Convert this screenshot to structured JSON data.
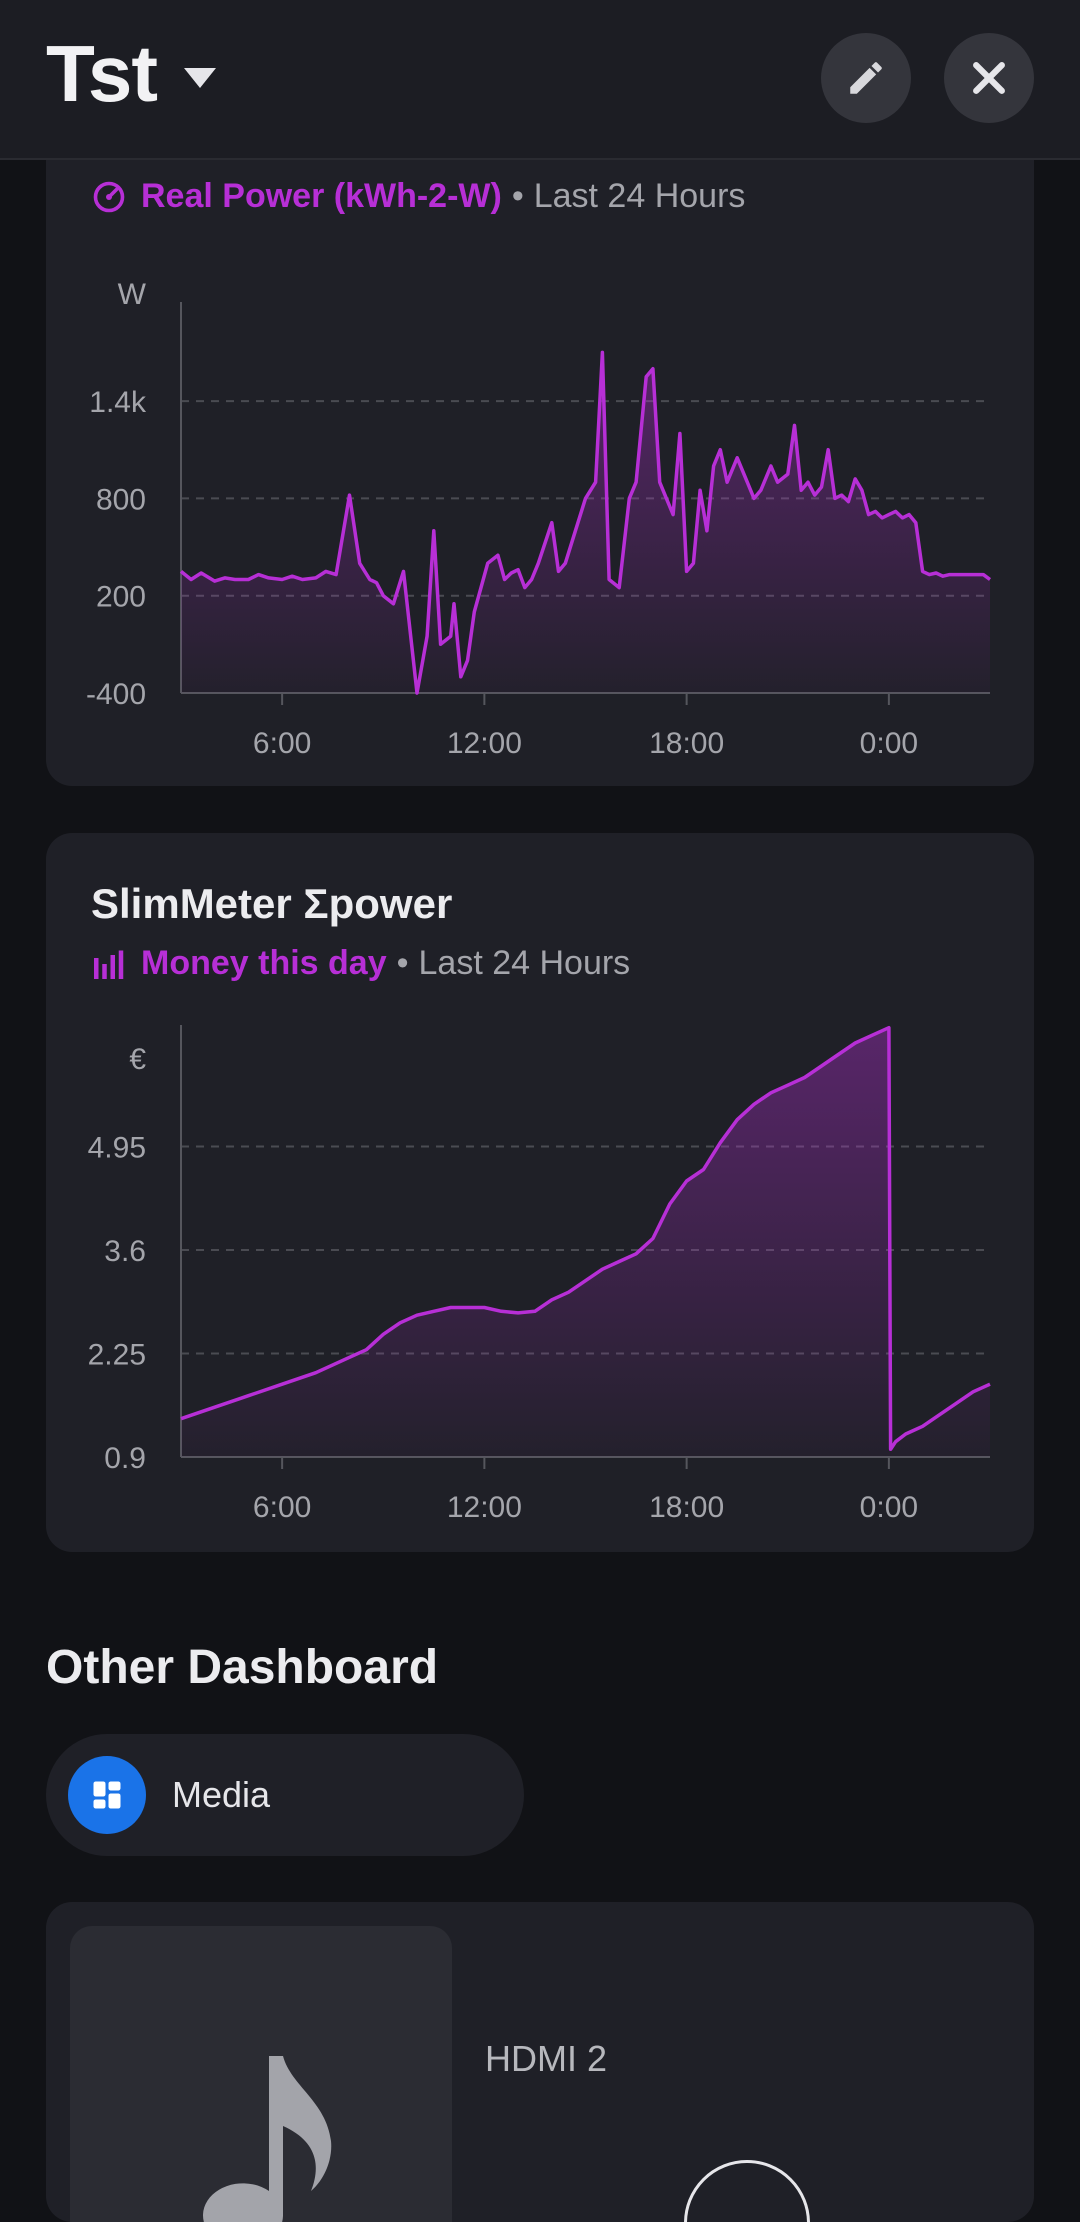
{
  "header": {
    "title": "Tst",
    "icons": [
      "chevron-down-icon",
      "pencil-icon",
      "close-icon"
    ]
  },
  "cards": [
    {
      "title": "",
      "entity": "Real Power (kWh-2-W)",
      "period": "Last 24 Hours",
      "icon": "gauge-icon",
      "accent_color": "#b72fd6"
    },
    {
      "title": "SlimMeter Σpower",
      "entity": "Money this day",
      "period": "Last 24 Hours",
      "icon": "bar-chart-icon",
      "accent_color": "#b72fd6"
    }
  ],
  "chart_data": [
    {
      "type": "line",
      "series": [
        {
          "name": "",
          "x": [
            3,
            3.3,
            3.6,
            4,
            4.3,
            4.6,
            5,
            5.3,
            5.6,
            6,
            6.3,
            6.6,
            7,
            7.3,
            7.6,
            8,
            8.3,
            8.6,
            8.8,
            9,
            9.3,
            9.6,
            10,
            10.3,
            10.5,
            10.7,
            11,
            11.1,
            11.3,
            11.5,
            11.7,
            11.9,
            12.1,
            12.4,
            12.6,
            12.8,
            13,
            13.2,
            13.4,
            13.6,
            14,
            14.2,
            14.4,
            14.7,
            15,
            15.3,
            15.5,
            15.7,
            16,
            16.3,
            16.5,
            16.8,
            17,
            17.2,
            17.4,
            17.6,
            17.8,
            18,
            18.2,
            18.4,
            18.6,
            18.8,
            19,
            19.2,
            19.5,
            19.8,
            20,
            20.2,
            20.5,
            20.7,
            21,
            21.2,
            21.4,
            21.6,
            21.8,
            22,
            22.2,
            22.4,
            22.6,
            22.8,
            23,
            23.2,
            23.4,
            23.6,
            23.8,
            24,
            24.2,
            24.4,
            24.6,
            24.8,
            25,
            25.2,
            25.4,
            25.6,
            25.8,
            26,
            26.2,
            26.5,
            26.8,
            27
          ],
          "y": [
            350,
            300,
            340,
            290,
            310,
            300,
            300,
            330,
            310,
            300,
            320,
            300,
            310,
            350,
            330,
            820,
            400,
            300,
            280,
            200,
            150,
            350,
            -400,
            -50,
            600,
            -100,
            -50,
            150,
            -300,
            -200,
            100,
            250,
            400,
            450,
            300,
            340,
            360,
            250,
            300,
            400,
            650,
            350,
            400,
            600,
            800,
            900,
            1700,
            300,
            250,
            800,
            900,
            1550,
            1600,
            900,
            800,
            700,
            1200,
            350,
            400,
            850,
            600,
            1000,
            1100,
            900,
            1050,
            900,
            800,
            850,
            1000,
            900,
            950,
            1250,
            850,
            900,
            820,
            870,
            1100,
            800,
            820,
            780,
            920,
            850,
            700,
            720,
            680,
            700,
            720,
            680,
            700,
            650,
            350,
            330,
            340,
            320,
            330,
            330,
            330,
            330,
            330,
            300
          ],
          "color": "#b72fd6"
        }
      ],
      "ylabel": "W",
      "yticks": [
        "-400",
        "200",
        "800",
        "1.4k"
      ],
      "xticks": [
        "6:00",
        "12:00",
        "18:00",
        "0:00"
      ],
      "xlim": [
        3,
        27
      ],
      "ylim": [
        -400,
        1900
      ],
      "grid": true
    },
    {
      "type": "area",
      "series": [
        {
          "name": "",
          "x": [
            3,
            4,
            5,
            6,
            7,
            8,
            8.5,
            9,
            9.5,
            10,
            10.5,
            11,
            11.5,
            12,
            12.5,
            13,
            13.5,
            14,
            14.5,
            15,
            15.5,
            16,
            16.5,
            17,
            17.5,
            18,
            18.5,
            19,
            19.5,
            20,
            20.5,
            21,
            21.5,
            22,
            22.5,
            23,
            23.5,
            24,
            24.05,
            24.2,
            24.5,
            25,
            25.5,
            26,
            26.5,
            27
          ],
          "y": [
            1.4,
            1.55,
            1.7,
            1.85,
            2.0,
            2.2,
            2.3,
            2.5,
            2.65,
            2.75,
            2.8,
            2.85,
            2.85,
            2.85,
            2.8,
            2.78,
            2.8,
            2.95,
            3.05,
            3.2,
            3.35,
            3.45,
            3.55,
            3.75,
            4.2,
            4.5,
            4.65,
            5.0,
            5.3,
            5.5,
            5.65,
            5.75,
            5.85,
            6.0,
            6.15,
            6.3,
            6.4,
            6.5,
            1.0,
            1.1,
            1.2,
            1.3,
            1.45,
            1.6,
            1.75,
            1.85
          ],
          "color": "#b72fd6"
        }
      ],
      "ylabel": "€",
      "yticks": [
        "0.9",
        "2.25",
        "3.6",
        "4.95"
      ],
      "xticks": [
        "6:00",
        "12:00",
        "18:00",
        "0:00"
      ],
      "xlim": [
        3,
        27
      ],
      "ylim": [
        0.9,
        6.3
      ],
      "grid": true
    }
  ],
  "other_dashboard": {
    "title": "Other Dashboard",
    "items": [
      {
        "label": "Media",
        "icon": "dashboard-icon"
      }
    ]
  },
  "media_player": {
    "source": "HDMI 2",
    "art_icon": "music-note-icon"
  }
}
